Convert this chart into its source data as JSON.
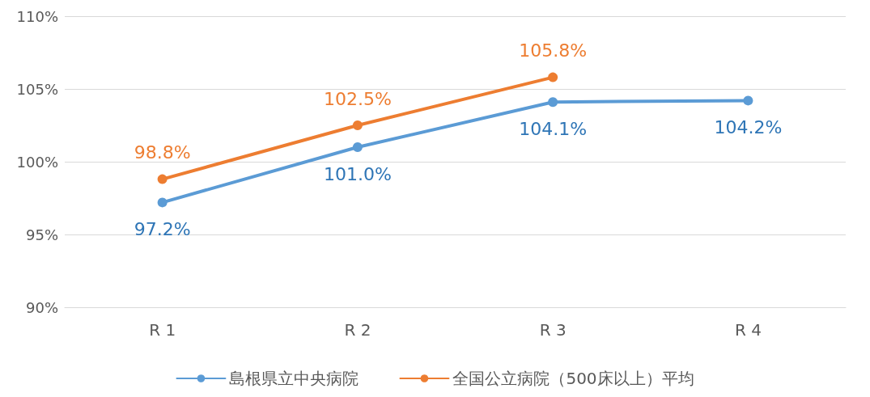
{
  "chart_data": {
    "type": "line",
    "categories": [
      "R 1",
      "R 2",
      "R 3",
      "R 4"
    ],
    "series": [
      {
        "name": "島根県立中央病院",
        "color": "#5b9bd5",
        "values": [
          97.2,
          101.0,
          104.1,
          104.2
        ],
        "value_labels": [
          "97.2%",
          "101.0%",
          "104.1%",
          "104.2%"
        ]
      },
      {
        "name": "全国公立病院（500床以上）平均",
        "color": "#ed7d31",
        "values": [
          98.8,
          102.5,
          105.8,
          null
        ],
        "value_labels": [
          "98.8%",
          "102.5%",
          "105.8%",
          null
        ]
      }
    ],
    "ylim": [
      90,
      110
    ],
    "yticks": [
      {
        "value": 90,
        "label": "90%"
      },
      {
        "value": 95,
        "label": "95%"
      },
      {
        "value": 100,
        "label": "100%"
      },
      {
        "value": 105,
        "label": "105%"
      },
      {
        "value": 110,
        "label": "110%"
      }
    ],
    "grid": "y",
    "legend": "bottom",
    "marker": "circle",
    "line_style": "solid"
  }
}
